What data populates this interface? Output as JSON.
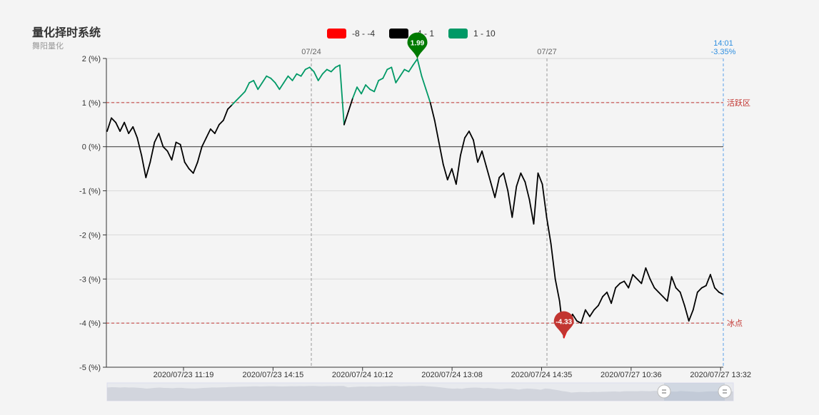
{
  "header": {
    "title": "量化择时系统",
    "subtitle": "舞阳量化"
  },
  "legend": [
    {
      "label": "-8 - -4",
      "color": "#ff0000"
    },
    {
      "label": "-4 - 1",
      "color": "#000000"
    },
    {
      "label": "1 - 10",
      "color": "#009966"
    }
  ],
  "chart_data": {
    "type": "line",
    "y_tick_labels": [
      "2 (%)",
      "1 (%)",
      "0 (%)",
      "-1 (%)",
      "-2 (%)",
      "-3 (%)",
      "-4 (%)",
      "-5 (%)"
    ],
    "ylim": [
      -5,
      2
    ],
    "x_tick_labels": [
      "2020/07/23 11:19",
      "2020/07/23 14:15",
      "2020/07/24 10:12",
      "2020/07/24 13:08",
      "2020/07/24 14:35",
      "2020/07/27 10:36",
      "2020/07/27 13:32"
    ],
    "day_separators": [
      "07/24",
      "07/27"
    ],
    "mark_lines": [
      {
        "value": 1,
        "label": "活跃区"
      },
      {
        "value": -4,
        "label": "冰点"
      }
    ],
    "mark_points": [
      {
        "label": "1.99",
        "value": 1.99,
        "kind": "max",
        "color": "#007a00"
      },
      {
        "label": "-4.33",
        "value": -4.33,
        "kind": "min",
        "color": "#c23531"
      }
    ],
    "cursor": {
      "time": "14:01",
      "value": "-3.35%"
    },
    "visual_map": [
      {
        "range": [
          -8,
          -4
        ],
        "color": "#ff0000"
      },
      {
        "range": [
          -4,
          1
        ],
        "color": "#000000"
      },
      {
        "range": [
          1,
          10
        ],
        "color": "#009966"
      }
    ],
    "series": [
      {
        "values": [
          0.35,
          0.65,
          0.55,
          0.35,
          0.55,
          0.3,
          0.45,
          0.2,
          -0.2,
          -0.7,
          -0.35,
          0.1,
          0.3,
          0.0,
          -0.1,
          -0.3,
          0.1,
          0.05,
          -0.35,
          -0.5,
          -0.6,
          -0.35,
          0.0,
          0.2,
          0.4,
          0.3,
          0.5,
          0.6,
          0.85,
          0.95,
          1.05,
          1.15,
          1.25,
          1.45,
          1.5,
          1.3,
          1.45,
          1.6,
          1.55,
          1.45,
          1.3,
          1.45,
          1.6,
          1.5,
          1.65,
          1.6,
          1.75,
          1.8,
          1.7,
          1.5,
          1.65,
          1.75,
          1.7,
          1.8,
          1.85,
          0.5,
          0.8,
          1.1,
          1.35,
          1.2,
          1.4,
          1.3,
          1.25,
          1.5,
          1.55,
          1.75,
          1.8,
          1.45,
          1.6,
          1.75,
          1.7,
          1.85,
          1.99,
          1.6,
          1.3,
          1.0,
          0.6,
          0.1,
          -0.4,
          -0.75,
          -0.5,
          -0.85,
          -0.2,
          0.2,
          0.35,
          0.15,
          -0.35,
          -0.1,
          -0.45,
          -0.8,
          -1.15,
          -0.7,
          -0.6,
          -1.0,
          -1.6,
          -0.9,
          -0.6,
          -0.8,
          -1.2,
          -1.75,
          -0.6,
          -0.85,
          -1.6,
          -2.2,
          -3.0,
          -3.5,
          -4.33,
          -4.1,
          -3.8,
          -3.95,
          -4.0,
          -3.7,
          -3.85,
          -3.7,
          -3.6,
          -3.4,
          -3.3,
          -3.55,
          -3.2,
          -3.1,
          -3.05,
          -3.2,
          -2.9,
          -3.0,
          -3.1,
          -2.75,
          -3.0,
          -3.2,
          -3.3,
          -3.4,
          -3.5,
          -2.95,
          -3.2,
          -3.3,
          -3.6,
          -3.95,
          -3.7,
          -3.3,
          -3.2,
          -3.15,
          -2.9,
          -3.2,
          -3.3,
          -3.35
        ]
      }
    ]
  }
}
